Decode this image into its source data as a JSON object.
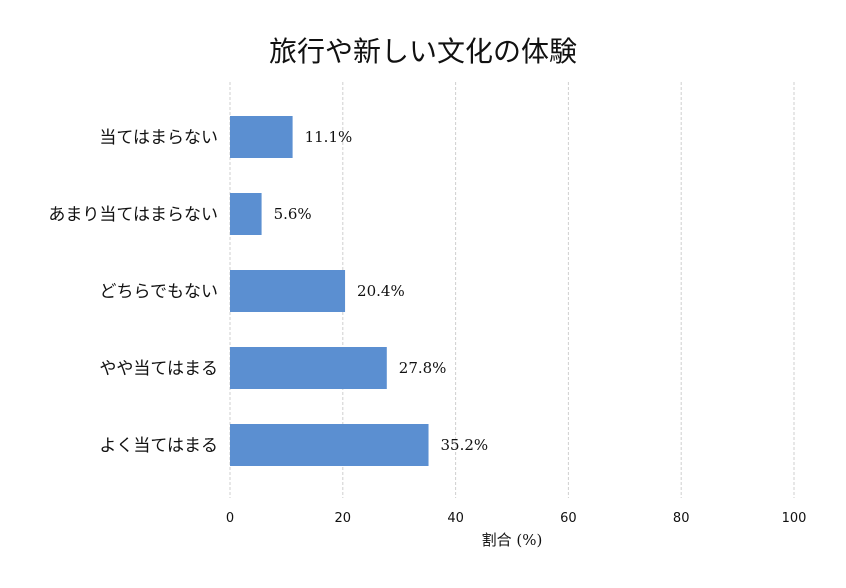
{
  "chart_data": {
    "type": "bar",
    "orientation": "horizontal",
    "title": "旅行や新しい文化の体験",
    "xlabel": "割合 (%)",
    "ylabel": "",
    "categories": [
      "よく当てはまる",
      "やや当てはまる",
      "どちらでもない",
      "あまり当てはまらない",
      "当てはまらない"
    ],
    "values": [
      35.2,
      27.8,
      20.4,
      5.6,
      11.1
    ],
    "value_labels": [
      "35.2%",
      "27.8%",
      "20.4%",
      "5.6%",
      "11.1%"
    ],
    "xlim": [
      0,
      100
    ],
    "xticks": [
      0,
      20,
      40,
      60,
      80,
      100
    ],
    "grid": "vertical dashed",
    "bar_color": "#5b8fd1",
    "legend": "none"
  }
}
